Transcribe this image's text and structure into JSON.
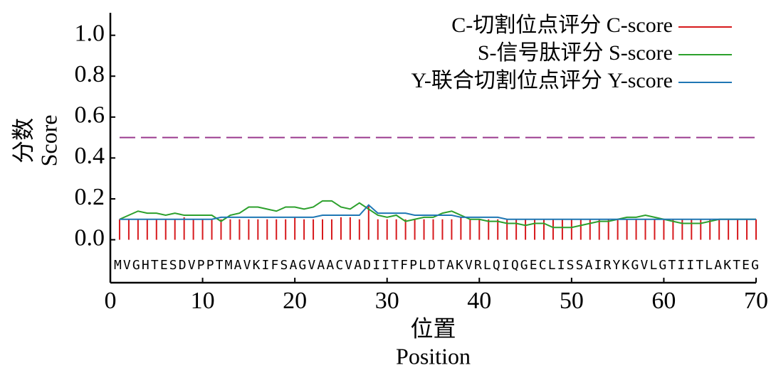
{
  "chart_data": {
    "type": "line",
    "xlabel": [
      "位置",
      "Position"
    ],
    "ylabel": [
      "分数",
      "Score"
    ],
    "sequence": "MVGHTESDVPPTMAVKIFSAGVAACVADIITFPLDTAKVRLQIQGECLISSAIRYKGVLGTIITLAKTEG",
    "x": [
      1,
      2,
      3,
      4,
      5,
      6,
      7,
      8,
      9,
      10,
      11,
      12,
      13,
      14,
      15,
      16,
      17,
      18,
      19,
      20,
      21,
      22,
      23,
      24,
      25,
      26,
      27,
      28,
      29,
      30,
      31,
      32,
      33,
      34,
      35,
      36,
      37,
      38,
      39,
      40,
      41,
      42,
      43,
      44,
      45,
      46,
      47,
      48,
      49,
      50,
      51,
      52,
      53,
      54,
      55,
      56,
      57,
      58,
      59,
      60,
      61,
      62,
      63,
      64,
      65,
      66,
      67,
      68,
      69,
      70
    ],
    "series": [
      {
        "name": "C-切割位点评分 C-score",
        "color": "#d7191c",
        "mark": "stem",
        "values": [
          0.1,
          0.1,
          0.1,
          0.1,
          0.1,
          0.1,
          0.1,
          0.11,
          0.1,
          0.1,
          0.1,
          0.1,
          0.1,
          0.1,
          0.1,
          0.1,
          0.1,
          0.1,
          0.1,
          0.11,
          0.1,
          0.1,
          0.1,
          0.1,
          0.11,
          0.11,
          0.1,
          0.17,
          0.1,
          0.1,
          0.1,
          0.1,
          0.1,
          0.1,
          0.1,
          0.1,
          0.1,
          0.11,
          0.1,
          0.1,
          0.1,
          0.1,
          0.1,
          0.1,
          0.1,
          0.1,
          0.1,
          0.1,
          0.1,
          0.1,
          0.1,
          0.1,
          0.1,
          0.1,
          0.1,
          0.1,
          0.1,
          0.1,
          0.1,
          0.1,
          0.1,
          0.1,
          0.1,
          0.1,
          0.1,
          0.1,
          0.1,
          0.1,
          0.1,
          0.1
        ]
      },
      {
        "name": "S-信号肽评分 S-score",
        "color": "#2ca02c",
        "mark": "line",
        "values": [
          0.1,
          0.12,
          0.14,
          0.13,
          0.13,
          0.12,
          0.13,
          0.12,
          0.12,
          0.12,
          0.12,
          0.09,
          0.12,
          0.13,
          0.16,
          0.16,
          0.15,
          0.14,
          0.16,
          0.16,
          0.15,
          0.16,
          0.19,
          0.19,
          0.16,
          0.15,
          0.18,
          0.15,
          0.12,
          0.11,
          0.12,
          0.09,
          0.1,
          0.11,
          0.11,
          0.13,
          0.14,
          0.12,
          0.1,
          0.1,
          0.09,
          0.09,
          0.08,
          0.08,
          0.07,
          0.08,
          0.08,
          0.06,
          0.06,
          0.06,
          0.07,
          0.08,
          0.09,
          0.09,
          0.1,
          0.11,
          0.11,
          0.12,
          0.11,
          0.1,
          0.09,
          0.08,
          0.08,
          0.08,
          0.09,
          0.1,
          0.1,
          0.1,
          0.1,
          0.1
        ]
      },
      {
        "name": "Y-联合切割位点评分 Y-score",
        "color": "#1f77b4",
        "mark": "line",
        "values": [
          0.1,
          0.1,
          0.1,
          0.1,
          0.1,
          0.1,
          0.1,
          0.1,
          0.1,
          0.1,
          0.1,
          0.11,
          0.11,
          0.11,
          0.11,
          0.11,
          0.11,
          0.11,
          0.11,
          0.11,
          0.11,
          0.11,
          0.12,
          0.12,
          0.12,
          0.12,
          0.12,
          0.17,
          0.13,
          0.13,
          0.13,
          0.13,
          0.12,
          0.12,
          0.12,
          0.12,
          0.12,
          0.11,
          0.11,
          0.11,
          0.11,
          0.11,
          0.1,
          0.1,
          0.1,
          0.1,
          0.1,
          0.1,
          0.1,
          0.1,
          0.1,
          0.1,
          0.1,
          0.1,
          0.1,
          0.1,
          0.1,
          0.1,
          0.1,
          0.1,
          0.1,
          0.1,
          0.1,
          0.1,
          0.1,
          0.1,
          0.1,
          0.1,
          0.1,
          0.1
        ]
      }
    ],
    "threshold": {
      "value": 0.5,
      "color": "#9b3a8e"
    },
    "xlim": [
      0,
      70
    ],
    "xticks": [
      0,
      10,
      20,
      30,
      40,
      50,
      60,
      70
    ],
    "ylim": [
      -0.21,
      1.11
    ],
    "yticks": [
      {
        "value": 0,
        "label": "0.0"
      },
      0.2,
      0.4,
      0.6,
      0.8,
      {
        "value": 1,
        "label": "1.0"
      }
    ],
    "legend": "upper right"
  }
}
